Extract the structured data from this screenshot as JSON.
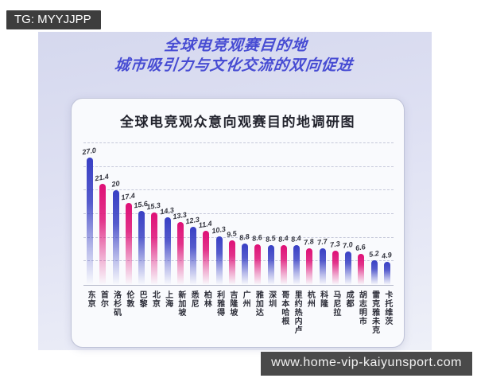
{
  "badge": {
    "text": "TG: MYYJJPP"
  },
  "main_title": {
    "line1": "全球电竞观赛目的地",
    "line2": "城市吸引力与文化交流的双向促进"
  },
  "watermark": {
    "text": "www.home-vip-kaiyunsport.com"
  },
  "colors": {
    "title_blue": "#474cd3",
    "graphic_bg_top": "#d5d8ee",
    "graphic_bg_bottom": "#eef0f8",
    "card_bg": "#f9fafd",
    "text_dark": "#23242e",
    "badge_bg": "#3d3d3d",
    "watermark_bg": "#4a4a4a"
  },
  "chart_data": {
    "type": "bar",
    "title": "全球电竞观众意向观赛目的地调研图",
    "xlabel": "",
    "ylabel": "",
    "ylim": [
      0,
      30
    ],
    "grid": "dashed horizontal lines every 5 units, no y tick labels",
    "legend": "none",
    "categories": [
      "东京",
      "首尔",
      "洛杉矶",
      "伦敦",
      "巴黎",
      "北京",
      "上海",
      "新加坡",
      "悉尼",
      "柏林",
      "利雅得",
      "吉隆坡",
      "广州",
      "雅加达",
      "深圳",
      "哥本哈根",
      "里约热内卢",
      "杭州",
      "科隆",
      "马尼拉",
      "成都",
      "胡志明市",
      "雷克雅未克",
      "卡托维茨"
    ],
    "values": [
      "27.0",
      "21.4",
      "20",
      "17.4",
      "15.6",
      "15.3",
      "14.3",
      "13.3",
      "12.3",
      "11.4",
      "10.3",
      "9.5",
      "8.8",
      "8.6",
      "8.5",
      "8.4",
      "8.4",
      "7.8",
      "7.7",
      "7.3",
      "7.0",
      "6.6",
      "5.2",
      "4.9"
    ],
    "bar_colors": [
      "blue",
      "pink",
      "blue",
      "pink",
      "blue",
      "pink",
      "blue",
      "pink",
      "blue",
      "pink",
      "blue",
      "pink",
      "blue",
      "pink",
      "blue",
      "pink",
      "blue",
      "pink",
      "blue",
      "pink",
      "blue",
      "pink",
      "blue",
      "blue"
    ],
    "bar_palette": {
      "blue": "#383fc4",
      "pink": "#de0f76"
    },
    "bar_style": "narrow rounded-top bars with vertical fade to transparent at bottom"
  }
}
